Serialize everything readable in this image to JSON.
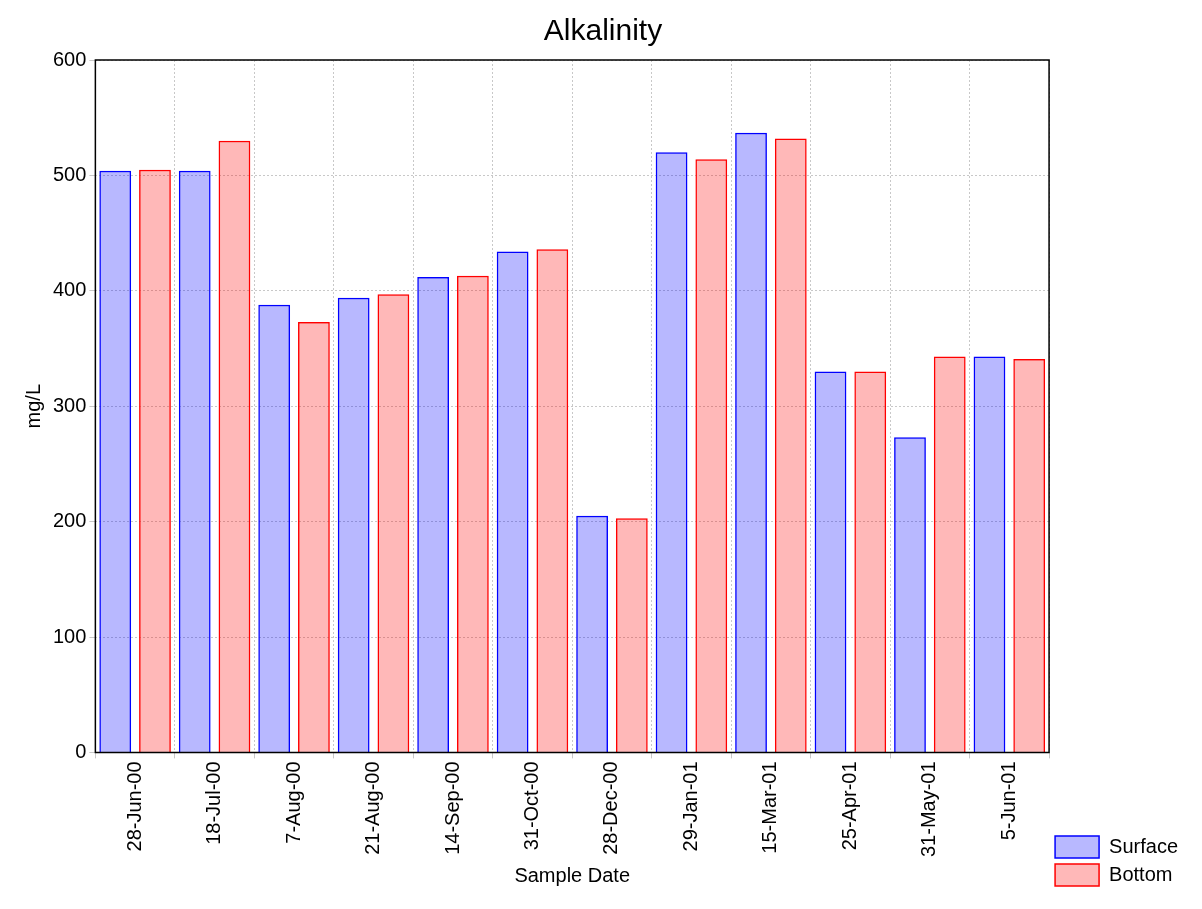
{
  "chart_data": {
    "type": "bar",
    "title": "Alkalinity",
    "xlabel": "Sample Date",
    "ylabel": "mg/L",
    "categories": [
      "28-Jun-00",
      "18-Jul-00",
      "7-Aug-00",
      "21-Aug-00",
      "14-Sep-00",
      "31-Oct-00",
      "28-Dec-00",
      "29-Jan-01",
      "15-Mar-01",
      "25-Apr-01",
      "31-May-01",
      "5-Jun-01"
    ],
    "series": [
      {
        "name": "Surface",
        "color": "#0000ff",
        "values": [
          504,
          504,
          388,
          394,
          412,
          434,
          205,
          520,
          537,
          330,
          273,
          343
        ]
      },
      {
        "name": "Bottom",
        "color": "#ff0000",
        "values": [
          505,
          530,
          373,
          397,
          413,
          436,
          203,
          514,
          532,
          330,
          343,
          341
        ]
      }
    ],
    "ylim": [
      0,
      600
    ],
    "yticks": [
      0,
      100,
      200,
      300,
      400,
      500,
      600
    ],
    "grid": true,
    "legend": "bottom right"
  }
}
